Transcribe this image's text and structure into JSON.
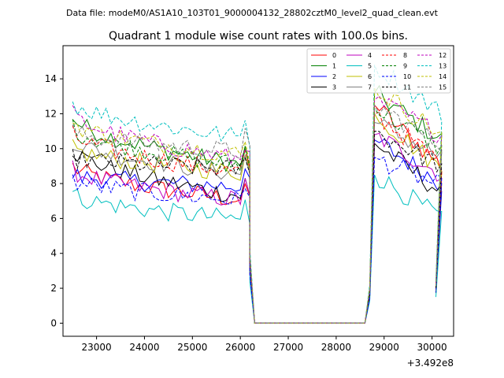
{
  "chart_data": {
    "type": "line",
    "suptitle": "Data file: modeM0/AS1A10_103T01_9000004132_28802cztM0_level2_quad_clean.evt",
    "title": "Quadrant 1 module wise count rates with 100.0s bins.",
    "xlabel": "",
    "ylabel": "",
    "x_offset_label": "+3.492e8",
    "xlim": [
      22300,
      30450
    ],
    "ylim": [
      -0.75,
      15.9
    ],
    "x_ticks": [
      23000,
      24000,
      25000,
      26000,
      27000,
      28000,
      29000,
      30000
    ],
    "x_tick_labels": [
      "23000",
      "24000",
      "25000",
      "26000",
      "27000",
      "28000",
      "29000",
      "30000"
    ],
    "y_ticks": [
      0,
      2,
      4,
      6,
      8,
      10,
      12,
      14
    ],
    "y_tick_labels": [
      "0",
      "2",
      "4",
      "6",
      "8",
      "10",
      "12",
      "14"
    ],
    "legend_position": "upper right",
    "bin_start": 22500,
    "bin_width": 100,
    "series": [
      {
        "name": "0",
        "color": "#ff0000",
        "dash": false,
        "start": 9.0,
        "seg_end": 7.0,
        "post_start": 12.5,
        "post_end": 9.0
      },
      {
        "name": "1",
        "color": "#008000",
        "dash": false,
        "start": 11.8,
        "seg_end": 9.0,
        "post_start": 13.2,
        "post_end": 10.5
      },
      {
        "name": "2",
        "color": "#0000ff",
        "dash": false,
        "start": 8.5,
        "seg_end": 7.8,
        "post_start": 10.5,
        "post_end": 8.0
      },
      {
        "name": "3",
        "color": "#000000",
        "dash": false,
        "start": 10.0,
        "seg_end": 7.2,
        "post_start": 10.3,
        "post_end": 7.5
      },
      {
        "name": "4",
        "color": "#bf00bf",
        "dash": false,
        "start": 8.8,
        "seg_end": 7.0,
        "post_start": 10.8,
        "post_end": 8.5
      },
      {
        "name": "5",
        "color": "#00bfbf",
        "dash": false,
        "start": 7.4,
        "seg_end": 5.9,
        "post_start": 8.5,
        "post_end": 6.0
      },
      {
        "name": "6",
        "color": "#bfbf00",
        "dash": false,
        "start": 10.0,
        "seg_end": 8.6,
        "post_start": 12.0,
        "post_end": 8.8
      },
      {
        "name": "7",
        "color": "#808080",
        "dash": false,
        "start": 10.5,
        "seg_end": 8.5,
        "post_start": 11.5,
        "post_end": 9.5
      },
      {
        "name": "8",
        "color": "#ff0000",
        "dash": true,
        "start": 10.8,
        "seg_end": 8.6,
        "post_start": 12.0,
        "post_end": 9.2
      },
      {
        "name": "9",
        "color": "#008000",
        "dash": true,
        "start": 11.2,
        "seg_end": 9.0,
        "post_start": 12.3,
        "post_end": 10.0
      },
      {
        "name": "10",
        "color": "#0000ff",
        "dash": true,
        "start": 8.2,
        "seg_end": 7.0,
        "post_start": 9.5,
        "post_end": 7.8
      },
      {
        "name": "11",
        "color": "#000000",
        "dash": true,
        "start": 9.5,
        "seg_end": 8.8,
        "post_start": 11.0,
        "post_end": 9.0
      },
      {
        "name": "12",
        "color": "#bf00bf",
        "dash": true,
        "start": 12.0,
        "seg_end": 9.3,
        "post_start": 12.8,
        "post_end": 10.8
      },
      {
        "name": "13",
        "color": "#00bfbf",
        "dash": true,
        "start": 12.7,
        "seg_end": 10.6,
        "post_start": 14.8,
        "post_end": 12.0
      },
      {
        "name": "14",
        "color": "#bfbf00",
        "dash": true,
        "start": 11.5,
        "seg_end": 9.6,
        "post_start": 13.5,
        "post_end": 10.8
      },
      {
        "name": "15",
        "color": "#808080",
        "dash": true,
        "start": 11.0,
        "seg_end": 9.8,
        "post_start": 12.5,
        "post_end": 10.2
      }
    ]
  }
}
